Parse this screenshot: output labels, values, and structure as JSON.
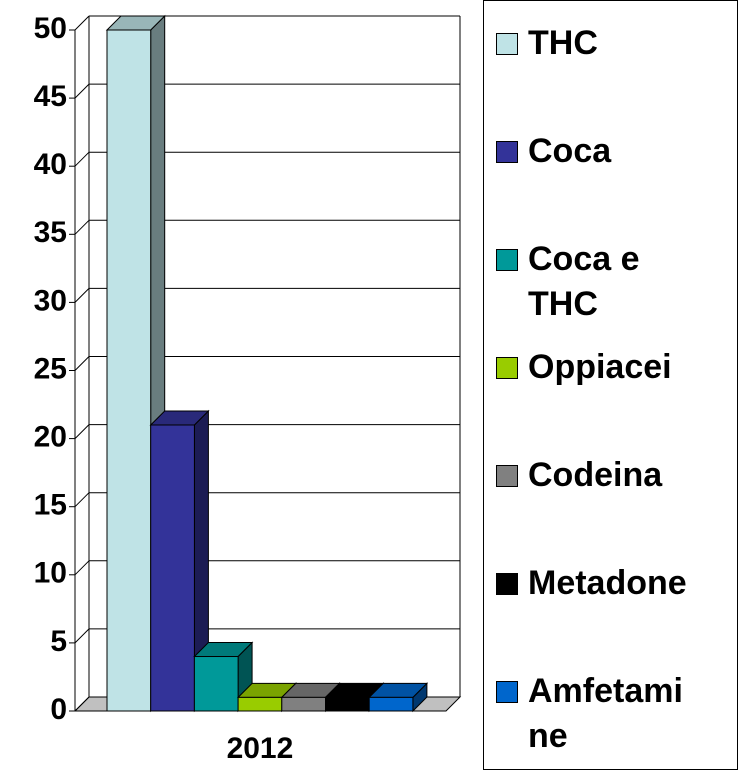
{
  "chart_data": {
    "type": "bar3d",
    "categories": [
      "2012"
    ],
    "series": [
      {
        "name": "THC",
        "color": "#bfe3e6",
        "values": [
          50
        ]
      },
      {
        "name": "Coca",
        "color": "#333399",
        "values": [
          21
        ]
      },
      {
        "name": "Coca e THC",
        "color": "#009999",
        "values": [
          4
        ]
      },
      {
        "name": "Oppiacei",
        "color": "#99cc00",
        "values": [
          1
        ]
      },
      {
        "name": "Codeina",
        "color": "#808080",
        "values": [
          1
        ]
      },
      {
        "name": "Metadone",
        "color": "#000000",
        "values": [
          1
        ]
      },
      {
        "name": "Amfetamine",
        "color": "#0066cc",
        "values": [
          1
        ]
      }
    ],
    "ylim": [
      0,
      50
    ],
    "yticks": [
      0,
      5,
      10,
      15,
      20,
      25,
      30,
      35,
      40,
      45,
      50
    ],
    "grid": true,
    "legend": "right"
  }
}
